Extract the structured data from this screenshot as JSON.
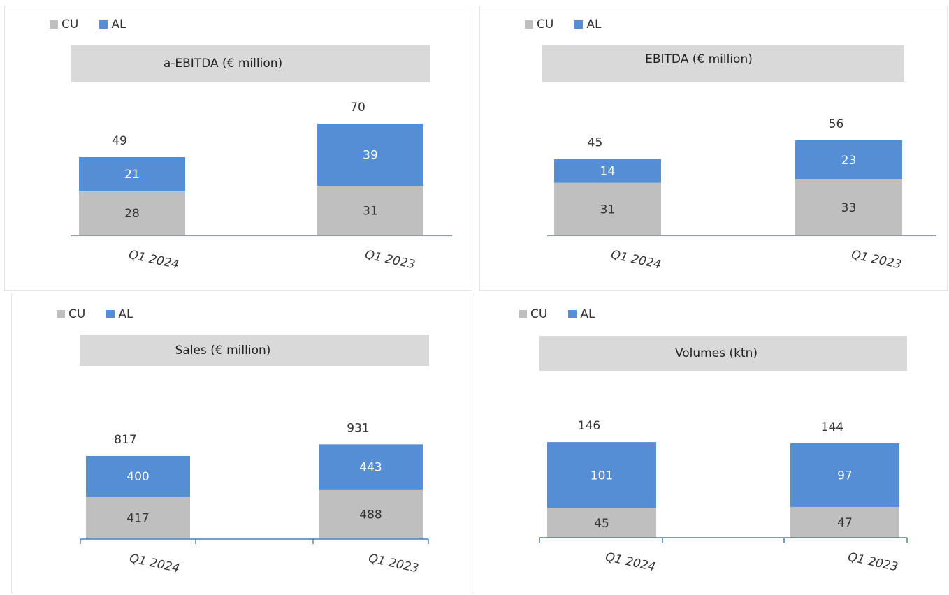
{
  "colors": {
    "CU": "#bfbfbf",
    "AL": "#558ed5",
    "axis": "#4a7ebb",
    "text": "#333333"
  },
  "chart_data": [
    {
      "type": "bar",
      "stacked": true,
      "title": "a-EBITDA (€ million)",
      "categories": [
        "Q1 2024",
        "Q1 2023"
      ],
      "series": [
        {
          "name": "CU",
          "values": [
            28,
            31
          ]
        },
        {
          "name": "AL",
          "values": [
            21,
            39
          ]
        }
      ],
      "totals": [
        49,
        70
      ],
      "legend": "top-left"
    },
    {
      "type": "bar",
      "stacked": true,
      "title": "EBITDA (€ million)",
      "categories": [
        "Q1 2024",
        "Q1 2023"
      ],
      "series": [
        {
          "name": "CU",
          "values": [
            31,
            33
          ]
        },
        {
          "name": "AL",
          "values": [
            14,
            23
          ]
        }
      ],
      "totals": [
        45,
        56
      ],
      "legend": "top-left"
    },
    {
      "type": "bar",
      "stacked": true,
      "title": "Sales (€ million)",
      "categories": [
        "Q1 2024",
        "Q1 2023"
      ],
      "series": [
        {
          "name": "CU",
          "values": [
            417,
            488
          ]
        },
        {
          "name": "AL",
          "values": [
            400,
            443
          ]
        }
      ],
      "totals": [
        817,
        931
      ],
      "legend": "top-left"
    },
    {
      "type": "bar",
      "stacked": true,
      "title": "Volumes (ktn)",
      "categories": [
        "Q1 2024",
        "Q1 2023"
      ],
      "series": [
        {
          "name": "CU",
          "values": [
            45,
            47
          ]
        },
        {
          "name": "AL",
          "values": [
            101,
            97
          ]
        }
      ],
      "totals": [
        146,
        144
      ],
      "legend": "top-left"
    }
  ]
}
